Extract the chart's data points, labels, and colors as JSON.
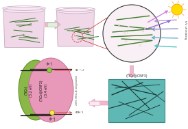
{
  "fig_width": 2.74,
  "fig_height": 1.89,
  "dpi": 100,
  "bg_color": "#ffffff",
  "beaker_fill": "#f0d8e8",
  "beaker_rim": "#c8a8c0",
  "beaker_top": "#e8c8dc",
  "fiber_color": "#3a7a2c",
  "arrow_color": "#f0b8cc",
  "arrow_edge": "#d898b0",
  "tablet_fill": "#e0f0e0",
  "tablet_edge": "#90cc90",
  "circle_fill": "#f8f0f4",
  "circle_edge": "#333333",
  "sun_fill": "#ffdd00",
  "sun_edge": "#ff9900",
  "uv_colors": [
    "#c090e0",
    "#9090d0",
    "#60b0d0",
    "#50c8c8"
  ],
  "reflect_colors": [
    "#d080e0",
    "#9070d0"
  ],
  "micro_fill": "#60b8b4",
  "micro_edge": "#3a8a88",
  "micro_fiber": "#1a3a38",
  "ellipse_green_fill": "#8ab848",
  "ellipse_green_edge": "#5a8820",
  "ellipse_pink_fill": "#e898b8",
  "ellipse_pink_edge": "#c07090",
  "band_line": "#111111",
  "dot_green_fill": "#88cc44",
  "dot_green_edge": "#448800",
  "dot_yellow_fill": "#eeee44",
  "dot_yellow_edge": "#888800",
  "red_arrow": "#dd2222",
  "label_color": "#111111",
  "rho_color": "#555555",
  "tio2_label": "(TiO₂)",
  "bandgap_tio2": "(3.2 eV)",
  "cnf3_label": "(TiO₂@CNF3)",
  "bandgap_cnf3": "(3.4 eV)",
  "label_eminus": "(e⁻)",
  "label_o2rad": "(O˙⁻₂)",
  "label_ohrad": "(OH˙)",
  "label_hplus": "(h⁺)",
  "label_rho": "20% Rho-B degraded",
  "label_tio2cnf3": "(TiO₂@CNF3)",
  "uv_shielding": "UV shielding"
}
